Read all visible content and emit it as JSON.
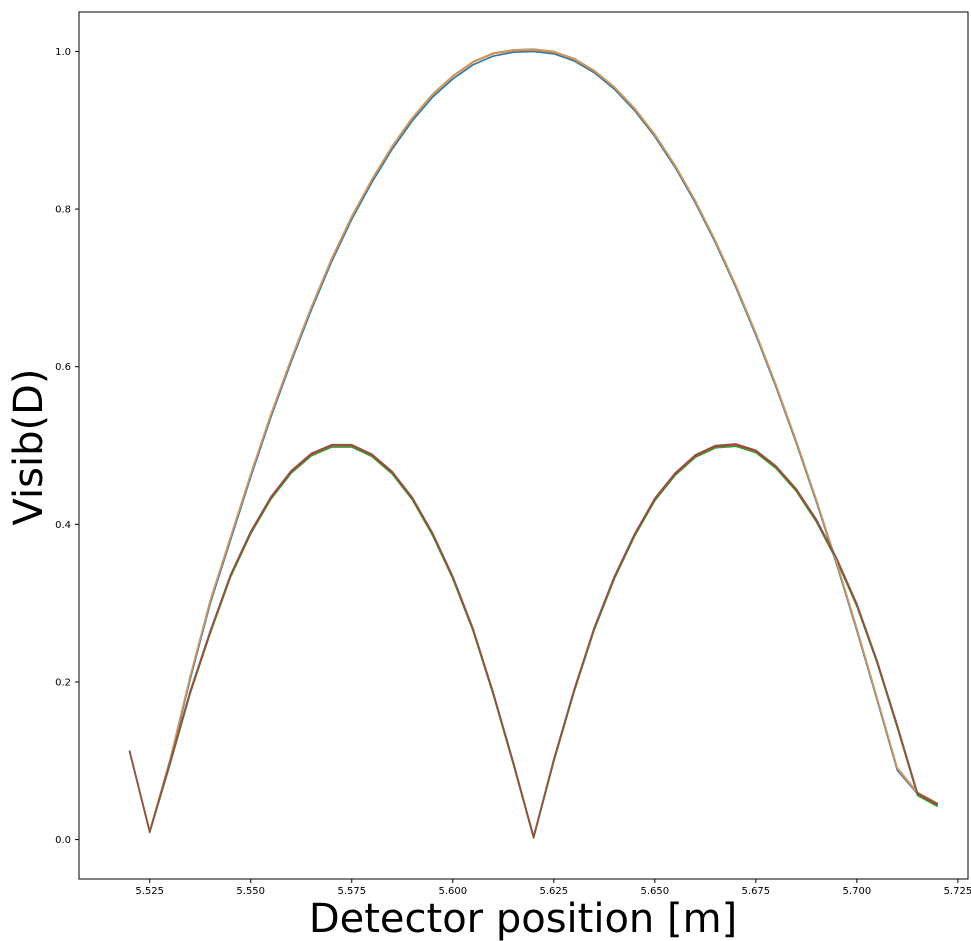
{
  "chart_data": {
    "type": "line",
    "title": "",
    "xlabel": "Detector position [m]",
    "ylabel": "Visib(D)",
    "xlim": [
      5.5075,
      5.7275
    ],
    "ylim": [
      -0.05,
      1.05
    ],
    "xticks": [
      5.525,
      5.55,
      5.575,
      5.6,
      5.625,
      5.65,
      5.675,
      5.7,
      5.725
    ],
    "xtick_labels": [
      "5.525",
      "5.550",
      "5.575",
      "5.600",
      "5.625",
      "5.650",
      "5.675",
      "5.700",
      "5.725"
    ],
    "yticks": [
      0.0,
      0.2,
      0.4,
      0.6,
      0.8,
      1.0
    ],
    "ytick_labels": [
      "0.0",
      "0.2",
      "0.4",
      "0.6",
      "0.8",
      "1.0"
    ],
    "grid": false,
    "legend": "none",
    "x": [
      5.52,
      5.525,
      5.53,
      5.535,
      5.54,
      5.545,
      5.55,
      5.555,
      5.56,
      5.565,
      5.57,
      5.575,
      5.58,
      5.585,
      5.59,
      5.595,
      5.6,
      5.605,
      5.61,
      5.615,
      5.62,
      5.625,
      5.63,
      5.635,
      5.64,
      5.645,
      5.65,
      5.655,
      5.66,
      5.665,
      5.67,
      5.675,
      5.68,
      5.685,
      5.69,
      5.695,
      5.7,
      5.705,
      5.71,
      5.715,
      5.72
    ],
    "series": [
      {
        "color": "#1f77b4",
        "values": [
          0.112,
          0.01,
          0.098,
          0.203,
          0.3,
          0.38,
          0.46,
          0.536,
          0.606,
          0.672,
          0.733,
          0.787,
          0.834,
          0.876,
          0.912,
          0.942,
          0.965,
          0.983,
          0.994,
          0.999,
          1.0,
          0.997,
          0.988,
          0.973,
          0.952,
          0.925,
          0.892,
          0.853,
          0.808,
          0.757,
          0.701,
          0.64,
          0.574,
          0.503,
          0.428,
          0.349,
          0.265,
          0.177,
          0.088,
          0.058,
          0.044
        ]
      },
      {
        "color": "#ff7f0e",
        "values": [
          0.113,
          0.011,
          0.1,
          0.206,
          0.303,
          0.383,
          0.463,
          0.539,
          0.609,
          0.675,
          0.736,
          0.79,
          0.837,
          0.879,
          0.915,
          0.945,
          0.968,
          0.986,
          0.997,
          1.001,
          1.002,
          0.999,
          0.99,
          0.975,
          0.954,
          0.927,
          0.894,
          0.855,
          0.81,
          0.759,
          0.703,
          0.642,
          0.576,
          0.505,
          0.43,
          0.351,
          0.267,
          0.179,
          0.09,
          0.059,
          0.045
        ]
      },
      {
        "color": "#2ca02c",
        "values": [
          0.112,
          0.009,
          0.095,
          0.185,
          0.262,
          0.333,
          0.388,
          0.432,
          0.465,
          0.487,
          0.498,
          0.498,
          0.486,
          0.464,
          0.431,
          0.386,
          0.331,
          0.265,
          0.184,
          0.095,
          0.002,
          0.099,
          0.187,
          0.266,
          0.331,
          0.385,
          0.43,
          0.462,
          0.485,
          0.497,
          0.499,
          0.491,
          0.471,
          0.442,
          0.403,
          0.354,
          0.296,
          0.224,
          0.142,
          0.056,
          0.042
        ]
      },
      {
        "color": "#d62728",
        "values": [
          0.113,
          0.01,
          0.097,
          0.187,
          0.264,
          0.335,
          0.39,
          0.434,
          0.467,
          0.489,
          0.5,
          0.5,
          0.488,
          0.466,
          0.433,
          0.388,
          0.333,
          0.267,
          0.186,
          0.097,
          0.003,
          0.101,
          0.189,
          0.268,
          0.333,
          0.387,
          0.432,
          0.464,
          0.487,
          0.499,
          0.501,
          0.493,
          0.473,
          0.444,
          0.405,
          0.356,
          0.298,
          0.226,
          0.144,
          0.058,
          0.044
        ]
      },
      {
        "color": "#c49a6c",
        "values": [
          0.113,
          0.011,
          0.101,
          0.207,
          0.304,
          0.384,
          0.464,
          0.54,
          0.61,
          0.676,
          0.737,
          0.791,
          0.838,
          0.88,
          0.916,
          0.946,
          0.969,
          0.987,
          0.998,
          1.002,
          1.003,
          1.0,
          0.991,
          0.976,
          0.955,
          0.928,
          0.895,
          0.856,
          0.811,
          0.76,
          0.704,
          0.643,
          0.577,
          0.506,
          0.431,
          0.352,
          0.268,
          0.18,
          0.091,
          0.06,
          0.046
        ]
      },
      {
        "color": "#8c564b",
        "values": [
          0.113,
          0.01,
          0.098,
          0.188,
          0.265,
          0.336,
          0.391,
          0.435,
          0.468,
          0.49,
          0.501,
          0.501,
          0.489,
          0.467,
          0.434,
          0.389,
          0.334,
          0.268,
          0.187,
          0.098,
          0.004,
          0.102,
          0.19,
          0.269,
          0.334,
          0.388,
          0.433,
          0.465,
          0.488,
          0.5,
          0.502,
          0.494,
          0.474,
          0.445,
          0.406,
          0.357,
          0.299,
          0.227,
          0.145,
          0.059,
          0.045
        ]
      }
    ]
  }
}
